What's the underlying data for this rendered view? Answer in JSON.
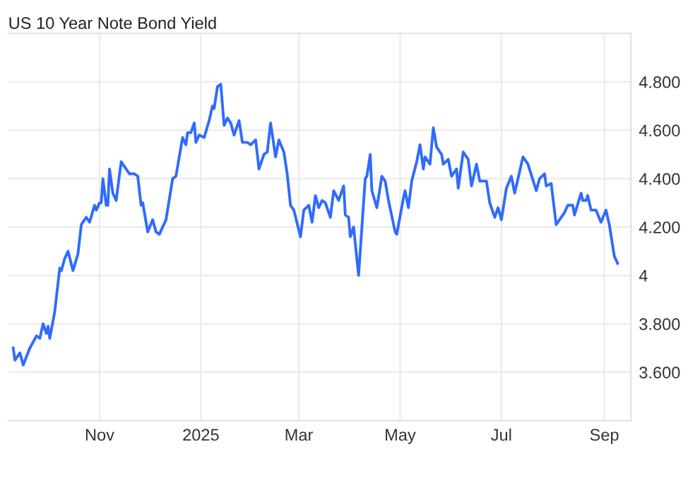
{
  "chart_data": {
    "type": "line",
    "title": "US 10 Year Note Bond Yield",
    "series": [
      {
        "color": "#2f6bff",
        "x": [
          "2024-09-10",
          "2024-09-11",
          "2024-09-14",
          "2024-09-16",
          "2024-09-20",
          "2024-09-24",
          "2024-09-26",
          "2024-09-28",
          "2024-09-30",
          "2024-10-01",
          "2024-10-02",
          "2024-10-05",
          "2024-10-08",
          "2024-10-09",
          "2024-10-11",
          "2024-10-13",
          "2024-10-16",
          "2024-10-19",
          "2024-10-21",
          "2024-10-24",
          "2024-10-26",
          "2024-10-29",
          "2024-10-30",
          "2024-11-01",
          "2024-11-02",
          "2024-11-03",
          "2024-11-05",
          "2024-11-06",
          "2024-11-07",
          "2024-11-09",
          "2024-11-11",
          "2024-11-14",
          "2024-11-16",
          "2024-11-19",
          "2024-11-22",
          "2024-11-24",
          "2024-11-26",
          "2024-11-27",
          "2024-11-30",
          "2024-12-03",
          "2024-12-05",
          "2024-12-07",
          "2024-12-11",
          "2024-12-15",
          "2024-12-17",
          "2024-12-21",
          "2024-12-23",
          "2024-12-24",
          "2024-12-26",
          "2024-12-28",
          "2024-12-29",
          "2024-12-31",
          "2025-01-03",
          "2025-01-06",
          "2025-01-08",
          "2025-01-09",
          "2025-01-11",
          "2025-01-13",
          "2025-01-15",
          "2025-01-17",
          "2025-01-19",
          "2025-01-21",
          "2025-01-24",
          "2025-01-26",
          "2025-01-29",
          "2025-01-31",
          "2025-02-03",
          "2025-02-05",
          "2025-02-08",
          "2025-02-10",
          "2025-02-12",
          "2025-02-15",
          "2025-02-17",
          "2025-02-20",
          "2025-02-22",
          "2025-02-24",
          "2025-02-26",
          "2025-03-02",
          "2025-03-04",
          "2025-03-07",
          "2025-03-09",
          "2025-03-11",
          "2025-03-13",
          "2025-03-15",
          "2025-03-17",
          "2025-03-20",
          "2025-03-22",
          "2025-03-25",
          "2025-03-28",
          "2025-03-29",
          "2025-03-31",
          "2025-04-01",
          "2025-04-03",
          "2025-04-06",
          "2025-04-10",
          "2025-04-11",
          "2025-04-13",
          "2025-04-14",
          "2025-04-17",
          "2025-04-20",
          "2025-04-22",
          "2025-04-24",
          "2025-04-28",
          "2025-04-29",
          "2025-05-03",
          "2025-05-04",
          "2025-05-06",
          "2025-05-08",
          "2025-05-11",
          "2025-05-13",
          "2025-05-15",
          "2025-05-16",
          "2025-05-19",
          "2025-05-21",
          "2025-05-23",
          "2025-05-26",
          "2025-05-27",
          "2025-05-30",
          "2025-06-01",
          "2025-06-04",
          "2025-06-05",
          "2025-06-08",
          "2025-06-11",
          "2025-06-13",
          "2025-06-16",
          "2025-06-18",
          "2025-06-22",
          "2025-06-24",
          "2025-06-27",
          "2025-06-29",
          "2025-07-01",
          "2025-07-04",
          "2025-07-07",
          "2025-07-09",
          "2025-07-14",
          "2025-07-17",
          "2025-07-22",
          "2025-07-24",
          "2025-07-27",
          "2025-07-28",
          "2025-07-31",
          "2025-08-03",
          "2025-08-08",
          "2025-08-10",
          "2025-08-13",
          "2025-08-14",
          "2025-08-18",
          "2025-08-19",
          "2025-08-21",
          "2025-08-22",
          "2025-08-24",
          "2025-08-27",
          "2025-08-30",
          "2025-09-02",
          "2025-09-04",
          "2025-09-07",
          "2025-09-09"
        ],
        "values": [
          3.7,
          3.65,
          3.68,
          3.63,
          3.7,
          3.75,
          3.74,
          3.8,
          3.76,
          3.79,
          3.74,
          3.85,
          4.03,
          4.02,
          4.07,
          4.1,
          4.02,
          4.09,
          4.21,
          4.24,
          4.22,
          4.29,
          4.27,
          4.3,
          4.3,
          4.4,
          4.29,
          4.29,
          4.44,
          4.34,
          4.31,
          4.47,
          4.45,
          4.42,
          4.42,
          4.41,
          4.29,
          4.3,
          4.18,
          4.23,
          4.18,
          4.17,
          4.23,
          4.4,
          4.41,
          4.57,
          4.54,
          4.59,
          4.59,
          4.63,
          4.55,
          4.58,
          4.57,
          4.64,
          4.7,
          4.69,
          4.78,
          4.79,
          4.62,
          4.65,
          4.63,
          4.58,
          4.64,
          4.55,
          4.55,
          4.54,
          4.56,
          4.44,
          4.5,
          4.51,
          4.63,
          4.49,
          4.56,
          4.51,
          4.42,
          4.29,
          4.27,
          4.16,
          4.27,
          4.29,
          4.22,
          4.33,
          4.28,
          4.31,
          4.3,
          4.24,
          4.35,
          4.31,
          4.37,
          4.25,
          4.24,
          4.16,
          4.2,
          4.0,
          4.4,
          4.41,
          4.5,
          4.35,
          4.28,
          4.41,
          4.39,
          4.31,
          4.18,
          4.17,
          4.32,
          4.35,
          4.28,
          4.39,
          4.47,
          4.54,
          4.44,
          4.49,
          4.46,
          4.61,
          4.53,
          4.5,
          4.46,
          4.48,
          4.41,
          4.44,
          4.36,
          4.51,
          4.48,
          4.37,
          4.46,
          4.39,
          4.39,
          4.3,
          4.24,
          4.28,
          4.23,
          4.36,
          4.41,
          4.34,
          4.49,
          4.46,
          4.35,
          4.4,
          4.42,
          4.37,
          4.38,
          4.21,
          4.26,
          4.29,
          4.29,
          4.25,
          4.34,
          4.31,
          4.31,
          4.33,
          4.27,
          4.27,
          4.22,
          4.27,
          4.21,
          4.08,
          4.05
        ]
      }
    ],
    "xlim": [
      "2024-09-07",
      "2025-09-17"
    ],
    "xticks": [
      {
        "value": "2024-11-01",
        "label": "Nov"
      },
      {
        "value": "2025-01-01",
        "label": "2025"
      },
      {
        "value": "2025-03-01",
        "label": "Mar"
      },
      {
        "value": "2025-05-01",
        "label": "May"
      },
      {
        "value": "2025-07-01",
        "label": "Jul"
      },
      {
        "value": "2025-09-01",
        "label": "Sep"
      }
    ],
    "ylim": [
      3.4,
      5.0
    ],
    "yticks": [
      {
        "value": 3.6,
        "label": "3.600"
      },
      {
        "value": 3.8,
        "label": "3.800"
      },
      4,
      {
        "value": 4.2,
        "label": "4.200"
      },
      {
        "value": 4.4,
        "label": "4.400"
      },
      {
        "value": 4.6,
        "label": "4.600"
      },
      {
        "value": 4.8,
        "label": "4.800"
      }
    ],
    "grid": true,
    "marker": "none",
    "line_style": "solid"
  }
}
